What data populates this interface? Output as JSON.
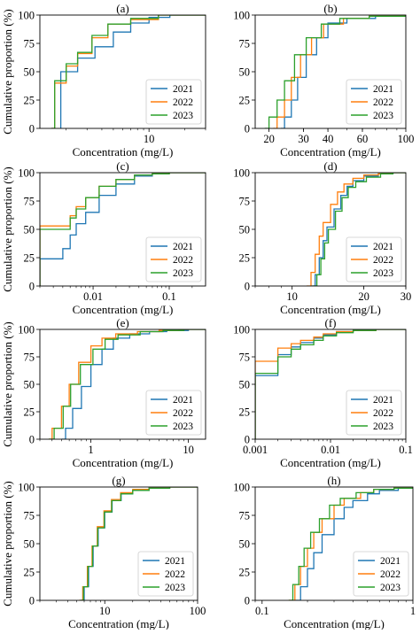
{
  "series_colors": [
    "#1f77b4",
    "#ff7f0e",
    "#2ca02c"
  ],
  "chart_data": [
    {
      "type": "line",
      "subtype": "ecdf",
      "panel": "a",
      "title": "(a)",
      "xlabel": "Concentration (mg/L)",
      "ylabel": "Cumulative proportion (%)",
      "xscale": "log",
      "xlim": [
        1.2,
        30
      ],
      "ylim": [
        0,
        100
      ],
      "xticks": [
        10
      ],
      "xtick_labels": [
        "10"
      ],
      "yticks": [
        0,
        25,
        50,
        75,
        100
      ],
      "ytick_labels": [
        "0",
        "25",
        "50",
        "75",
        "100"
      ],
      "grid": false,
      "legend": "lower-right",
      "series": [
        {
          "name": "2021",
          "x": [
            1.8,
            1.8,
            2.5,
            3.5,
            5,
            7,
            10,
            15,
            30
          ],
          "y": [
            0,
            50,
            62,
            72,
            85,
            93,
            98,
            100,
            100
          ]
        },
        {
          "name": "2022",
          "x": [
            1.5,
            1.6,
            2,
            2.5,
            3.3,
            4.5,
            7,
            12,
            30
          ],
          "y": [
            0,
            40,
            55,
            66,
            80,
            92,
            96,
            100,
            100
          ]
        },
        {
          "name": "2023",
          "x": [
            1.5,
            1.6,
            2,
            2.5,
            3.3,
            4.5,
            7,
            12,
            30
          ],
          "y": [
            0,
            42,
            57,
            67,
            82,
            92,
            97,
            100,
            100
          ]
        }
      ]
    },
    {
      "type": "line",
      "subtype": "ecdf",
      "panel": "b",
      "title": "(b)",
      "xlabel": "Concentration (mg/L)",
      "ylabel": "",
      "xscale": "log",
      "xlim": [
        17,
        100
      ],
      "ylim": [
        0,
        100
      ],
      "xticks": [
        20,
        30,
        40,
        60,
        100
      ],
      "xtick_labels": [
        "20",
        "30",
        "40",
        "60",
        "100"
      ],
      "yticks": [
        0,
        25,
        50,
        75,
        100
      ],
      "ytick_labels": [
        "0",
        "25",
        "50",
        "75",
        "100"
      ],
      "grid": false,
      "legend": "lower-right",
      "series": [
        {
          "name": "2021",
          "x": [
            23,
            24,
            26,
            28,
            31,
            35,
            40,
            50,
            70,
            100
          ],
          "y": [
            0,
            10,
            25,
            45,
            65,
            80,
            93,
            97,
            99,
            100
          ]
        },
        {
          "name": "2022",
          "x": [
            21,
            22,
            24,
            26,
            29,
            33,
            38,
            48,
            65,
            100
          ],
          "y": [
            0,
            10,
            25,
            45,
            65,
            80,
            92,
            97,
            99,
            100
          ]
        },
        {
          "name": "2023",
          "x": [
            19,
            20,
            22,
            24,
            27,
            31,
            37,
            46,
            65,
            100
          ],
          "y": [
            0,
            10,
            25,
            42,
            65,
            80,
            92,
            97,
            99,
            100
          ]
        }
      ]
    },
    {
      "type": "line",
      "subtype": "ecdf",
      "panel": "c",
      "title": "(c)",
      "xlabel": "Concentration (mg/L)",
      "ylabel": "Cumulative proportion (%)",
      "xscale": "log",
      "xlim": [
        0.002,
        0.3
      ],
      "ylim": [
        0,
        100
      ],
      "xticks": [
        0.01,
        0.1
      ],
      "xtick_labels": [
        "0.01",
        "0.1"
      ],
      "yticks": [
        0,
        25,
        50,
        75,
        100
      ],
      "ytick_labels": [
        "0",
        "25",
        "50",
        "75",
        "100"
      ],
      "grid": false,
      "legend": "lower-right",
      "series": [
        {
          "name": "2021",
          "x": [
            0.002,
            0.002,
            0.004,
            0.004,
            0.005,
            0.005,
            0.006,
            0.006,
            0.008,
            0.012,
            0.02,
            0.035,
            0.06,
            0.1,
            0.3
          ],
          "y": [
            0,
            24,
            24,
            33,
            33,
            45,
            45,
            55,
            65,
            80,
            90,
            97,
            99,
            100,
            100
          ]
        },
        {
          "name": "2022",
          "x": [
            0.002,
            0.002,
            0.004,
            0.005,
            0.006,
            0.008,
            0.012,
            0.02,
            0.035,
            0.06,
            0.1,
            0.3
          ],
          "y": [
            0,
            53,
            53,
            62,
            70,
            78,
            88,
            94,
            98,
            99,
            100,
            100
          ]
        },
        {
          "name": "2023",
          "x": [
            0.002,
            0.002,
            0.004,
            0.005,
            0.006,
            0.008,
            0.012,
            0.02,
            0.035,
            0.06,
            0.1,
            0.3
          ],
          "y": [
            0,
            50,
            50,
            60,
            68,
            78,
            88,
            94,
            98,
            99,
            100,
            100
          ]
        }
      ]
    },
    {
      "type": "line",
      "subtype": "ecdf",
      "panel": "d",
      "title": "(d)",
      "xlabel": "Concentration (mg/L)",
      "ylabel": "",
      "xscale": "log",
      "xlim": [
        7,
        30
      ],
      "ylim": [
        0,
        100
      ],
      "xticks": [
        10,
        20,
        30
      ],
      "xtick_labels": [
        "10",
        "20",
        "30"
      ],
      "yticks": [
        0,
        25,
        50,
        75,
        100
      ],
      "ytick_labels": [
        "0",
        "25",
        "50",
        "75",
        "100"
      ],
      "grid": false,
      "legend": "lower-right",
      "series": [
        {
          "name": "2021",
          "x": [
            12,
            12.5,
            13,
            13.5,
            14,
            15,
            16,
            17,
            18,
            20,
            23,
            26,
            30
          ],
          "y": [
            0,
            10,
            25,
            40,
            52,
            68,
            80,
            88,
            93,
            97,
            99,
            100,
            100
          ]
        },
        {
          "name": "2022",
          "x": [
            11.5,
            12,
            12.5,
            13,
            13.5,
            14.5,
            15.5,
            16.5,
            18,
            20,
            23,
            26,
            30
          ],
          "y": [
            0,
            12,
            28,
            44,
            56,
            72,
            83,
            90,
            95,
            98,
            99,
            100,
            100
          ]
        },
        {
          "name": "2023",
          "x": [
            12.2,
            12.7,
            13.2,
            13.7,
            14.2,
            15.2,
            16.2,
            17.2,
            18.5,
            20.5,
            23.5,
            26.5,
            30
          ],
          "y": [
            0,
            10,
            24,
            38,
            50,
            66,
            78,
            87,
            92,
            96,
            99,
            100,
            100
          ]
        }
      ]
    },
    {
      "type": "line",
      "subtype": "ecdf",
      "panel": "e",
      "title": "(e)",
      "xlabel": "Concentration (mg/L)",
      "ylabel": "Cumulative proportion (%)",
      "xscale": "log",
      "xlim": [
        0.3,
        15
      ],
      "ylim": [
        0,
        100
      ],
      "xticks": [
        1,
        10
      ],
      "xtick_labels": [
        "1",
        "10"
      ],
      "yticks": [
        0,
        25,
        50,
        75,
        100
      ],
      "ytick_labels": [
        "0",
        "25",
        "50",
        "75",
        "100"
      ],
      "grid": false,
      "legend": "lower-right",
      "series": [
        {
          "name": "2021",
          "x": [
            0.5,
            0.55,
            0.65,
            0.8,
            1,
            1.3,
            1.7,
            2.5,
            4,
            6,
            10,
            15
          ],
          "y": [
            0,
            10,
            28,
            48,
            68,
            82,
            92,
            96,
            98,
            99,
            100,
            100
          ]
        },
        {
          "name": "2022",
          "x": [
            0.37,
            0.4,
            0.5,
            0.6,
            0.75,
            1,
            1.3,
            1.8,
            3,
            5,
            8,
            15
          ],
          "y": [
            0,
            10,
            30,
            50,
            70,
            85,
            92,
            96,
            98,
            99,
            100,
            100
          ]
        },
        {
          "name": "2023",
          "x": [
            0.37,
            0.42,
            0.52,
            0.62,
            0.78,
            1.05,
            1.4,
            1.9,
            3.2,
            5.5,
            9,
            15
          ],
          "y": [
            0,
            10,
            30,
            50,
            68,
            82,
            91,
            95,
            98,
            99,
            100,
            100
          ]
        }
      ]
    },
    {
      "type": "line",
      "subtype": "ecdf",
      "panel": "f",
      "title": "(f)",
      "xlabel": "Concentration (mg/L)",
      "ylabel": "",
      "xscale": "log",
      "xlim": [
        0.001,
        0.1
      ],
      "ylim": [
        0,
        100
      ],
      "xticks": [
        0.001,
        0.01,
        0.1
      ],
      "xtick_labels": [
        "0.001",
        "0.01",
        "0.1"
      ],
      "yticks": [
        0,
        25,
        50,
        75,
        100
      ],
      "ytick_labels": [
        "0",
        "25",
        "50",
        "75",
        "100"
      ],
      "grid": false,
      "legend": "lower-right",
      "series": [
        {
          "name": "2021",
          "x": [
            0.001,
            0.001,
            0.002,
            0.002,
            0.003,
            0.003,
            0.004,
            0.004,
            0.006,
            0.008,
            0.012,
            0.02,
            0.04,
            0.1
          ],
          "y": [
            0,
            58,
            58,
            77,
            77,
            84,
            84,
            88,
            92,
            95,
            98,
            99,
            100,
            100
          ]
        },
        {
          "name": "2022",
          "x": [
            0.001,
            0.001,
            0.002,
            0.002,
            0.003,
            0.003,
            0.004,
            0.004,
            0.006,
            0.008,
            0.012,
            0.02,
            0.04,
            0.1
          ],
          "y": [
            0,
            71,
            71,
            83,
            83,
            87,
            87,
            90,
            93,
            96,
            98,
            99,
            100,
            100
          ]
        },
        {
          "name": "2023",
          "x": [
            0.001,
            0.001,
            0.002,
            0.002,
            0.003,
            0.003,
            0.004,
            0.004,
            0.006,
            0.008,
            0.012,
            0.02,
            0.04,
            0.1
          ],
          "y": [
            0,
            60,
            60,
            75,
            75,
            82,
            82,
            86,
            90,
            94,
            97,
            99,
            100,
            100
          ]
        }
      ]
    },
    {
      "type": "line",
      "subtype": "ecdf",
      "panel": "g",
      "title": "(g)",
      "xlabel": "Concentration (mg/L)",
      "ylabel": "Cumulative proportion (%)",
      "xscale": "log",
      "xlim": [
        2,
        100
      ],
      "ylim": [
        0,
        100
      ],
      "xticks": [
        10,
        100
      ],
      "xtick_labels": [
        "10",
        "100"
      ],
      "yticks": [
        0,
        25,
        50,
        75,
        100
      ],
      "ytick_labels": [
        "0",
        "25",
        "50",
        "75",
        "100"
      ],
      "grid": false,
      "legend": "lower-right",
      "series": [
        {
          "name": "2021",
          "x": [
            5.5,
            6,
            6.7,
            7.5,
            8.5,
            10,
            12,
            15,
            20,
            30,
            50,
            100
          ],
          "y": [
            0,
            12,
            30,
            48,
            64,
            78,
            88,
            94,
            97,
            99,
            100,
            100
          ]
        },
        {
          "name": "2022",
          "x": [
            5.3,
            5.8,
            6.5,
            7.3,
            8.3,
            9.8,
            11.8,
            14.8,
            20,
            30,
            50,
            100
          ],
          "y": [
            0,
            12,
            30,
            48,
            65,
            79,
            89,
            95,
            98,
            99,
            100,
            100
          ]
        },
        {
          "name": "2023",
          "x": [
            5.4,
            5.9,
            6.6,
            7.4,
            8.4,
            9.9,
            11.9,
            14.9,
            20,
            30,
            50,
            100
          ],
          "y": [
            0,
            12,
            30,
            48,
            64,
            78,
            88,
            94,
            97,
            99,
            100,
            100
          ]
        }
      ]
    },
    {
      "type": "line",
      "subtype": "ecdf",
      "panel": "h",
      "title": "(h)",
      "xlabel": "Concentration (mg/L)",
      "ylabel": "",
      "xscale": "log",
      "xlim": [
        0.09,
        1
      ],
      "ylim": [
        0,
        100
      ],
      "xticks": [
        0.1,
        1
      ],
      "xtick_labels": [
        "0.1",
        "1"
      ],
      "yticks": [
        0,
        25,
        50,
        75,
        100
      ],
      "ytick_labels": [
        "0",
        "25",
        "50",
        "75",
        "100"
      ],
      "grid": false,
      "legend": "lower-right",
      "series": [
        {
          "name": "2021",
          "x": [
            0.165,
            0.18,
            0.2,
            0.22,
            0.25,
            0.3,
            0.35,
            0.4,
            0.5,
            0.6,
            0.8,
            1
          ],
          "y": [
            0,
            12,
            28,
            42,
            58,
            72,
            82,
            88,
            94,
            97,
            99,
            100
          ]
        },
        {
          "name": "2022",
          "x": [
            0.15,
            0.165,
            0.18,
            0.2,
            0.22,
            0.25,
            0.3,
            0.35,
            0.45,
            0.55,
            0.75,
            1
          ],
          "y": [
            0,
            14,
            30,
            46,
            60,
            72,
            84,
            90,
            95,
            98,
            99,
            100
          ]
        },
        {
          "name": "2023",
          "x": [
            0.15,
            0.16,
            0.175,
            0.19,
            0.21,
            0.24,
            0.28,
            0.33,
            0.42,
            0.55,
            0.75,
            1
          ],
          "y": [
            0,
            14,
            30,
            46,
            60,
            72,
            84,
            90,
            95,
            98,
            99,
            100
          ]
        }
      ]
    }
  ]
}
